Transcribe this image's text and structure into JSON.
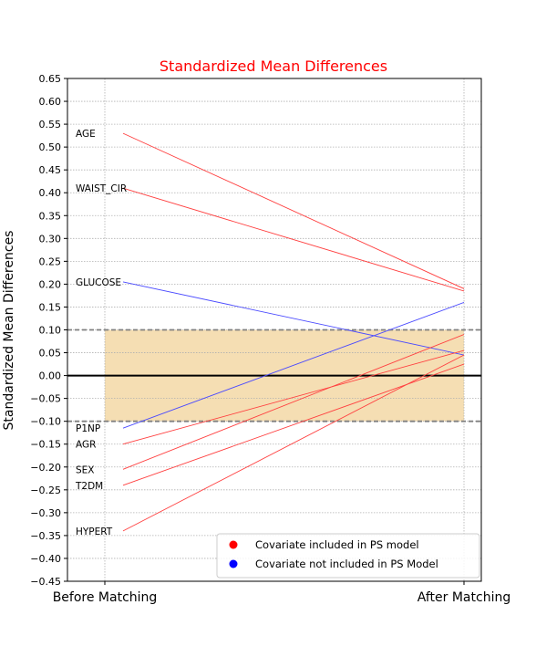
{
  "chart_data": {
    "type": "line",
    "title": "Standardized Mean Differences",
    "title_color": "#ff0000",
    "ylabel": "Standardized Mean Differences",
    "xlabel": "",
    "categories": [
      "Before Matching",
      "After Matching"
    ],
    "ylim": [
      -0.45,
      0.65
    ],
    "yticks": [
      "0.65",
      "0.60",
      "0.55",
      "0.50",
      "0.45",
      "0.40",
      "0.35",
      "0.30",
      "0.25",
      "0.20",
      "0.15",
      "0.10",
      "0.05",
      "0.00",
      "-0.05",
      "-0.10",
      "-0.15",
      "-0.20",
      "-0.25",
      "-0.30",
      "-0.35",
      "-0.40",
      "-0.45"
    ],
    "grid": true,
    "threshold_band": [
      -0.1,
      0.1
    ],
    "band_color": "#f5deb3",
    "colors": {
      "included": "#ff4040",
      "not_included": "#4a4aff"
    },
    "series": [
      {
        "name": "AGE",
        "before": 0.53,
        "after": 0.19,
        "included": true
      },
      {
        "name": "WAIST_CIR",
        "before": 0.41,
        "after": 0.185,
        "included": true
      },
      {
        "name": "GLUCOSE",
        "before": 0.205,
        "after": 0.045,
        "included": false
      },
      {
        "name": "P1NP",
        "before": -0.115,
        "after": 0.16,
        "included": false
      },
      {
        "name": "AGR",
        "before": -0.15,
        "after": 0.055,
        "included": true
      },
      {
        "name": "SEX",
        "before": -0.205,
        "after": 0.09,
        "included": true
      },
      {
        "name": "T2DM",
        "before": -0.24,
        "after": 0.025,
        "included": true
      },
      {
        "name": "HYPERT",
        "before": -0.34,
        "after": 0.045,
        "included": true
      }
    ],
    "legend": {
      "position": "lower-right",
      "items": [
        {
          "label": "Covariate included in PS model",
          "color": "#ff0000"
        },
        {
          "label": "Covariate not included in PS Model",
          "color": "#0000ff"
        }
      ]
    }
  }
}
